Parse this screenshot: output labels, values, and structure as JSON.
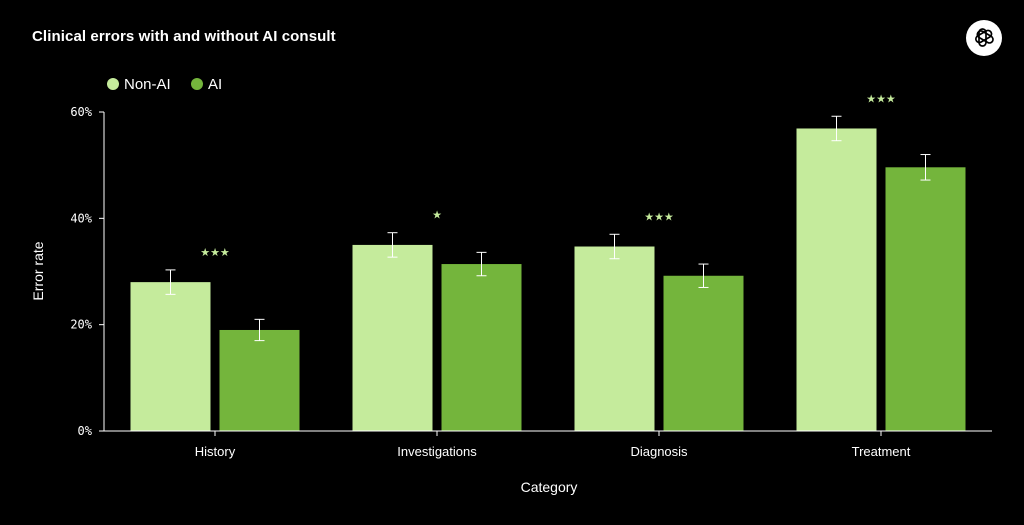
{
  "chart_data": {
    "type": "bar",
    "title": "Clinical errors with and without AI consult",
    "xlabel": "Category",
    "ylabel": "Error rate",
    "ylim": [
      0,
      60
    ],
    "yticks": [
      0,
      20,
      40,
      60
    ],
    "ytick_format": "{v}%",
    "categories": [
      "History",
      "Investigations",
      "Diagnosis",
      "Treatment"
    ],
    "series": [
      {
        "name": "Non-AI",
        "color": "#c5eb9c",
        "values": [
          28,
          35,
          34.7,
          56.9
        ],
        "error": [
          2.3,
          2.3,
          2.3,
          2.3
        ]
      },
      {
        "name": "AI",
        "color": "#74b53c",
        "values": [
          19,
          31.4,
          29.2,
          49.6
        ],
        "error": [
          2.0,
          2.2,
          2.2,
          2.4
        ]
      }
    ],
    "significance": [
      "★★★",
      "★",
      "★★★",
      "★★★"
    ],
    "significance_color": "#c5eb9c",
    "legend_position": "top-left",
    "grid": false
  },
  "logo": {
    "icon": "openai-logo-icon"
  }
}
